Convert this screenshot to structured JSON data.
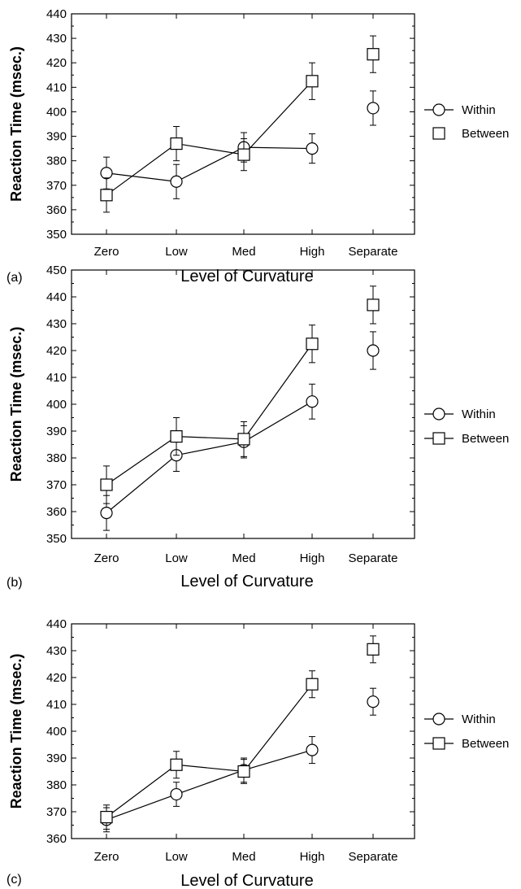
{
  "chart_data": [
    {
      "type": "line",
      "panel_label": "(a)",
      "xlabel": "Level of Curvature",
      "ylabel": "Reaction Time (msec.)",
      "categories": [
        "Zero",
        "Low",
        "Med",
        "High",
        "Separate"
      ],
      "ylim": [
        350,
        440
      ],
      "yticks": [
        350,
        360,
        370,
        380,
        390,
        400,
        410,
        420,
        430,
        440
      ],
      "legend_style": "markers",
      "series": [
        {
          "name": "Within",
          "marker": "circle",
          "values": [
            375,
            371.5,
            385.5,
            385,
            401.5
          ],
          "errors": [
            6.5,
            7,
            6,
            6,
            7
          ]
        },
        {
          "name": "Between",
          "marker": "square",
          "values": [
            366,
            387,
            382.5,
            412.5,
            423.5
          ],
          "errors": [
            7,
            7,
            6.5,
            7.5,
            7.5
          ]
        }
      ],
      "connected_categories": [
        "Zero",
        "Low",
        "Med",
        "High"
      ]
    },
    {
      "type": "line",
      "panel_label": "(b)",
      "xlabel": "Level of Curvature",
      "ylabel": "Reaction Time (msec.)",
      "categories": [
        "Zero",
        "Low",
        "Med",
        "High",
        "Separate"
      ],
      "ylim": [
        350,
        450
      ],
      "yticks": [
        350,
        360,
        370,
        380,
        390,
        400,
        410,
        420,
        430,
        440,
        450
      ],
      "legend_style": "lines",
      "series": [
        {
          "name": "Within",
          "marker": "circle",
          "values": [
            359.5,
            381,
            386,
            401,
            420
          ],
          "errors": [
            6.5,
            6,
            6,
            6.5,
            7
          ]
        },
        {
          "name": "Between",
          "marker": "square",
          "values": [
            370,
            388,
            387,
            422.5,
            437
          ],
          "errors": [
            7,
            7,
            6.5,
            7,
            7
          ]
        }
      ],
      "connected_categories": [
        "Zero",
        "Low",
        "Med",
        "High"
      ]
    },
    {
      "type": "line",
      "panel_label": "(c)",
      "xlabel": "Level of Curvature",
      "ylabel": "Reaction Time (msec.)",
      "categories": [
        "Zero",
        "Low",
        "Med",
        "High",
        "Separate"
      ],
      "ylim": [
        360,
        440
      ],
      "yticks": [
        360,
        370,
        380,
        390,
        400,
        410,
        420,
        430,
        440
      ],
      "legend_style": "lines",
      "series": [
        {
          "name": "Within",
          "marker": "circle",
          "values": [
            367,
            376.5,
            385.5,
            393,
            411
          ],
          "errors": [
            4.5,
            4.5,
            4.5,
            5,
            5
          ]
        },
        {
          "name": "Between",
          "marker": "square",
          "values": [
            368,
            387.5,
            385,
            417.5,
            430.5
          ],
          "errors": [
            4.5,
            5,
            4.5,
            5,
            5
          ]
        }
      ],
      "connected_categories": [
        "Zero",
        "Low",
        "Med",
        "High"
      ]
    }
  ]
}
